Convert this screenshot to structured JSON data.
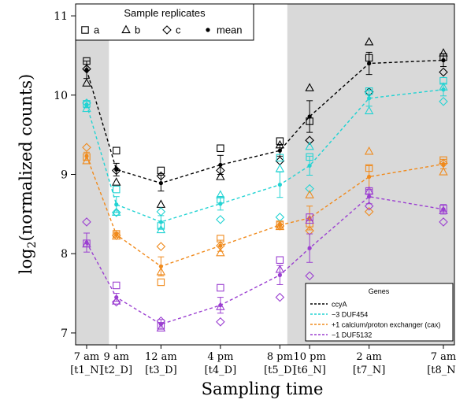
{
  "chart_data": {
    "type": "line",
    "xlabel": "Sampling time",
    "ylabel_main": "log",
    "ylabel_sub": "2",
    "ylabel_rest": "(normalized counts)",
    "ylim": [
      6.85,
      11.15
    ],
    "yticks": [
      7,
      8,
      9,
      10,
      11
    ],
    "x_hours": [
      0,
      2,
      5,
      9,
      13,
      15,
      19,
      24
    ],
    "x_labels": [
      "7 am",
      "9 am",
      "12 am",
      "4 pm",
      "8 pm",
      "10 pm",
      "2 am",
      "7 am"
    ],
    "x_sublabels": [
      "[t1_N]",
      "[t2_D]",
      "[t3_D]",
      "[t4_D]",
      "[t5_D]",
      "[t6_N]",
      "[t7_N]",
      "[t8_N]"
    ],
    "shaded_intervals": [
      [
        0,
        1.5
      ],
      [
        13.5,
        24
      ]
    ],
    "replicate_legend": {
      "title": "Sample replicates",
      "entries": [
        {
          "symbol": "square",
          "label": "a"
        },
        {
          "symbol": "triangle",
          "label": "b"
        },
        {
          "symbol": "diamond",
          "label": "c"
        },
        {
          "symbol": "dot",
          "label": "mean"
        }
      ]
    },
    "genes_legend_title": "Genes",
    "series": [
      {
        "name": "ccyA",
        "color": "#000000",
        "mean": [
          10.32,
          9.06,
          8.89,
          9.12,
          9.3,
          9.73,
          10.4,
          10.44
        ],
        "err": [
          0.11,
          0.08,
          0.1,
          0.12,
          0.07,
          0.2,
          0.14,
          0.08
        ],
        "a": [
          10.43,
          9.3,
          9.05,
          9.33,
          9.42,
          9.67,
          10.47,
          10.48
        ],
        "b": [
          10.15,
          8.9,
          8.62,
          8.97,
          9.37,
          10.09,
          10.67,
          10.53
        ],
        "c": [
          10.33,
          9.05,
          8.98,
          9.05,
          9.17,
          9.43,
          10.04,
          10.29
        ]
      },
      {
        "name": "−3 DUF454",
        "color": "#22d3d3",
        "mean": [
          9.88,
          8.62,
          8.4,
          8.63,
          8.87,
          9.11,
          9.96,
          10.07
        ],
        "err": [
          0.04,
          0.1,
          0.08,
          0.08,
          0.16,
          0.12,
          0.1,
          0.08
        ],
        "a": [
          9.89,
          8.81,
          8.35,
          8.68,
          9.21,
          9.22,
          10.05,
          10.18
        ],
        "b": [
          9.83,
          8.52,
          8.3,
          8.74,
          9.07,
          9.35,
          9.8,
          10.1
        ],
        "c": [
          9.9,
          8.52,
          8.53,
          8.43,
          8.46,
          8.82,
          10.03,
          9.92
        ]
      },
      {
        "name": "+1 calcium/proton exchanger (cax)",
        "color": "#f08a1c",
        "mean": [
          9.23,
          8.24,
          7.84,
          8.1,
          8.36,
          8.45,
          8.97,
          9.13
        ],
        "err": [
          0.05,
          0.03,
          0.12,
          0.07,
          0.04,
          0.15,
          0.14,
          0.06
        ],
        "a": [
          9.22,
          8.25,
          7.64,
          8.19,
          8.37,
          8.38,
          9.08,
          9.18
        ],
        "b": [
          9.17,
          8.22,
          7.77,
          8.01,
          8.34,
          8.74,
          9.29,
          9.03
        ],
        "c": [
          9.34,
          8.23,
          8.09,
          8.1,
          8.35,
          8.29,
          8.53,
          9.14
        ]
      },
      {
        "name": "−1 DUF5132",
        "color": "#9b3fd1",
        "mean": [
          8.14,
          7.45,
          7.11,
          7.35,
          7.73,
          8.07,
          8.72,
          8.56
        ],
        "err": [
          0.12,
          0.05,
          0.06,
          0.1,
          0.12,
          0.18,
          0.09,
          0.06
        ],
        "a": [
          8.13,
          7.6,
          7.09,
          7.57,
          7.92,
          8.46,
          8.79,
          8.57
        ],
        "b": [
          8.12,
          7.4,
          7.06,
          7.33,
          7.8,
          8.42,
          8.79,
          8.54
        ],
        "c": [
          8.4,
          7.39,
          7.15,
          7.14,
          7.45,
          7.72,
          8.6,
          8.4
        ]
      }
    ]
  }
}
